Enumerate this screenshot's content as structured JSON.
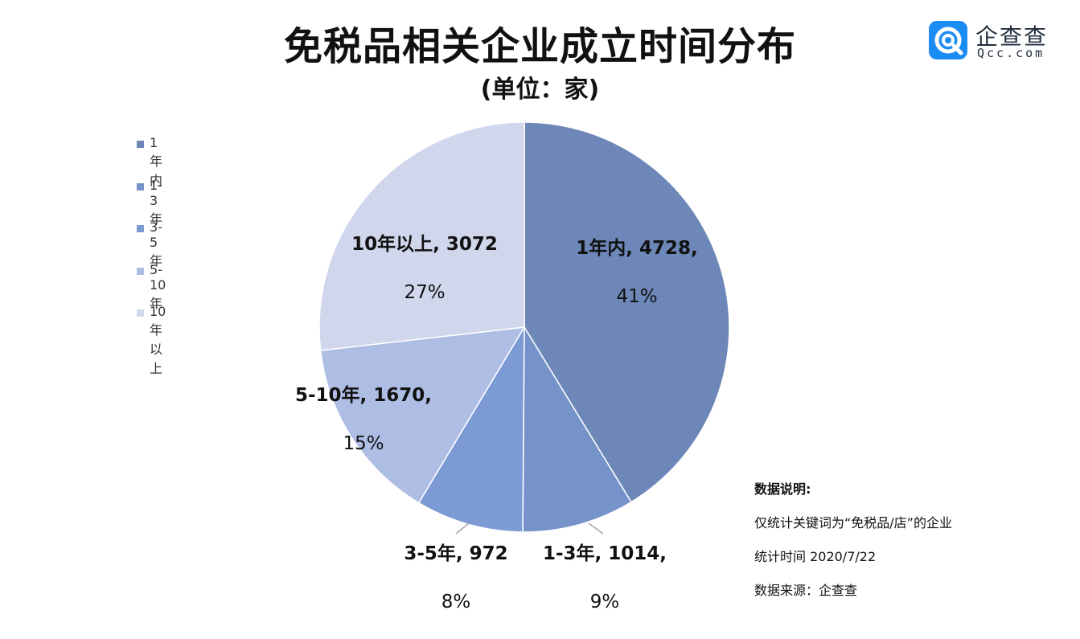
{
  "title": "免税品相关企业成立时间分布",
  "subtitle": "(单位：家)",
  "logo": {
    "cn": "企查查",
    "en": "Qcc.com",
    "color": "#1b8cf2"
  },
  "legend": [
    {
      "label": "1年内",
      "color": "#6d87b8"
    },
    {
      "label": "1-3年",
      "color": "#7593c9"
    },
    {
      "label": "3-5年",
      "color": "#7c9bd5"
    },
    {
      "label": "5-10年",
      "color": "#adbde3"
    },
    {
      "label": "10年以上",
      "color": "#d0d6ec"
    }
  ],
  "notes": {
    "heading": "数据说明:",
    "line1": "仅统计关键词为“免税品/店”的企业",
    "line2": "统计时间 2020/7/22",
    "line3": "数据来源：企查查"
  },
  "chart_data": {
    "type": "pie",
    "title": "免税品相关企业成立时间分布",
    "subtitle": "(单位：家)",
    "categories": [
      "1年内",
      "1-3年",
      "3-5年",
      "5-10年",
      "10年以上"
    ],
    "values": [
      4728,
      1014,
      972,
      1670,
      3072
    ],
    "percent_labels": [
      "41%",
      "9%",
      "8%",
      "15%",
      "27%"
    ],
    "data_labels": [
      "1年内, 4728,",
      "1-3年, 1014,",
      "3-5年, 972",
      "5-10年, 1670,",
      "10年以上, 3072"
    ],
    "colors": [
      "#6d87b8",
      "#7593c9",
      "#7c9bd5",
      "#adbde3",
      "#d0d6ec"
    ],
    "legend_position": "left"
  }
}
